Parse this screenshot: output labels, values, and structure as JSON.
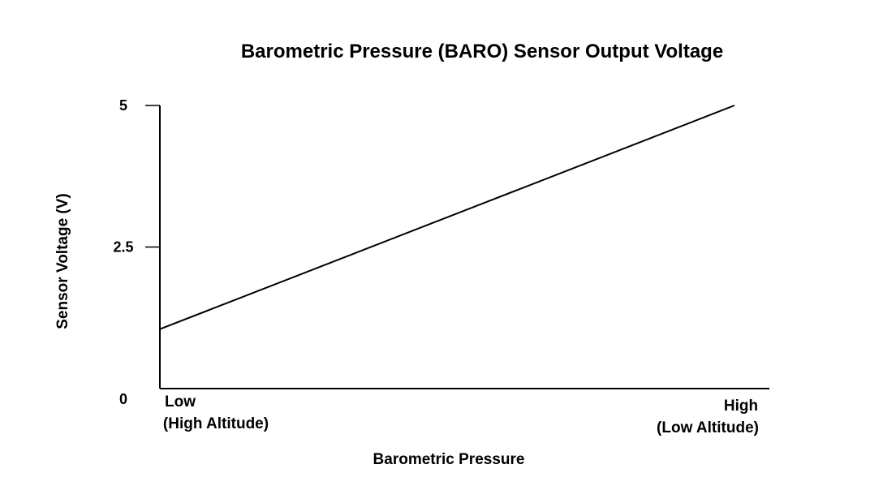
{
  "chart_data": {
    "type": "line",
    "title": "Barometric Pressure (BARO) Sensor Output Voltage",
    "xlabel": "Barometric Pressure",
    "ylabel": "Sensor Voltage (V)",
    "ylim": [
      0,
      5
    ],
    "y_ticks": [
      {
        "value": 5,
        "label": "5"
      },
      {
        "value": 2.5,
        "label": "2.5"
      },
      {
        "value": 0,
        "label": "0"
      }
    ],
    "x_ticks": {
      "low": [
        "Low",
        "(High Altitude)"
      ],
      "high": [
        "High",
        "(Low Altitude)"
      ]
    },
    "series": [
      {
        "x": [
          "Low",
          "High"
        ],
        "values": [
          1.05,
          5.0
        ]
      }
    ],
    "grid": false,
    "legend": "none",
    "line_color": "#000000"
  }
}
